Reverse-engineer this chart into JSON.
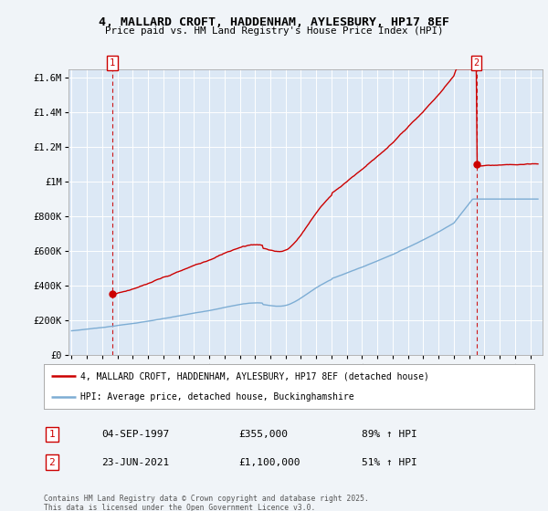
{
  "title_line1": "4, MALLARD CROFT, HADDENHAM, AYLESBURY, HP17 8EF",
  "title_line2": "Price paid vs. HM Land Registry's House Price Index (HPI)",
  "sale1_date_label": "04-SEP-1997",
  "sale1_price": 355000,
  "sale1_hpi_pct": "89% ↑ HPI",
  "sale2_date_label": "23-JUN-2021",
  "sale2_price": 1100000,
  "sale2_hpi_pct": "51% ↑ HPI",
  "sale1_x": 1997.68,
  "sale2_x": 2021.47,
  "red_line_color": "#cc0000",
  "blue_line_color": "#7dadd4",
  "dashed_line_color": "#cc0000",
  "background_color": "#f0f4f8",
  "plot_bg_color": "#dce8f5",
  "legend_line1": "4, MALLARD CROFT, HADDENHAM, AYLESBURY, HP17 8EF (detached house)",
  "legend_line2": "HPI: Average price, detached house, Buckinghamshire",
  "footer": "Contains HM Land Registry data © Crown copyright and database right 2025.\nThis data is licensed under the Open Government Licence v3.0.",
  "ylim": [
    0,
    1650000
  ],
  "xlim": [
    1994.8,
    2025.8
  ],
  "ytick_vals": [
    0,
    200000,
    400000,
    600000,
    800000,
    1000000,
    1200000,
    1400000,
    1600000
  ],
  "ytick_labels": [
    "£0",
    "£200K",
    "£400K",
    "£600K",
    "£800K",
    "£1M",
    "£1.2M",
    "£1.4M",
    "£1.6M"
  ]
}
